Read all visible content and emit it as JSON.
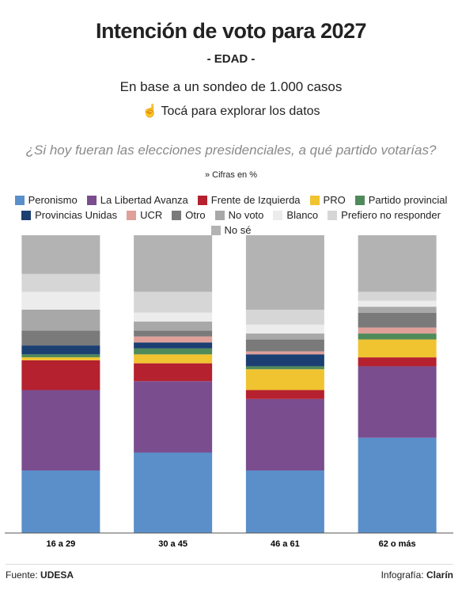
{
  "chart_data": {
    "type": "stacked_bar",
    "title": "Intención de voto para 2027",
    "subtitle": "- EDAD -",
    "note": "En base a un sondeo de 1.000 casos",
    "cta": "Tocá para explorar los datos",
    "question": "¿Si hoy fueran las elecciones presidenciales, a qué partido votarías?",
    "units_note": "» Cifras en %",
    "categories": [
      "16 a 29",
      "30 a 45",
      "46 a 61",
      "62 o más"
    ],
    "ylim": [
      0,
      100
    ],
    "series": [
      {
        "name": "Peronismo",
        "color": "#5a8fc9",
        "values": [
          21,
          27,
          21,
          32
        ]
      },
      {
        "name": "La Libertad Avanza",
        "color": "#7a4d8f",
        "values": [
          27,
          24,
          24,
          24
        ]
      },
      {
        "name": "Frente de Izquierda",
        "color": "#b5212f",
        "values": [
          10,
          6,
          3,
          3
        ]
      },
      {
        "name": "PRO",
        "color": "#f0c330",
        "values": [
          1,
          3,
          7,
          6
        ]
      },
      {
        "name": "Partido provincial",
        "color": "#4f8a5a",
        "values": [
          1,
          2,
          1,
          2
        ]
      },
      {
        "name": "Provincias Unidas",
        "color": "#1c3f72",
        "values": [
          3,
          2,
          4,
          0
        ]
      },
      {
        "name": "UCR",
        "color": "#e0a09a",
        "values": [
          0,
          2,
          1,
          2
        ]
      },
      {
        "name": "Otro",
        "color": "#7a7a7a",
        "values": [
          5,
          2,
          4,
          5
        ]
      },
      {
        "name": "No voto",
        "color": "#a8a8a8",
        "values": [
          7,
          3,
          2,
          2
        ]
      },
      {
        "name": "Blanco",
        "color": "#ececec",
        "values": [
          6,
          3,
          3,
          2
        ]
      },
      {
        "name": "Prefiero no responder",
        "color": "#d6d6d6",
        "values": [
          6,
          7,
          5,
          3
        ]
      },
      {
        "name": "No sé",
        "color": "#b3b3b3",
        "values": [
          13,
          19,
          25,
          19
        ]
      }
    ],
    "source_label": "Fuente:",
    "source": "UDESA",
    "credit_label": "Infografía:",
    "credit": "Clarín"
  }
}
